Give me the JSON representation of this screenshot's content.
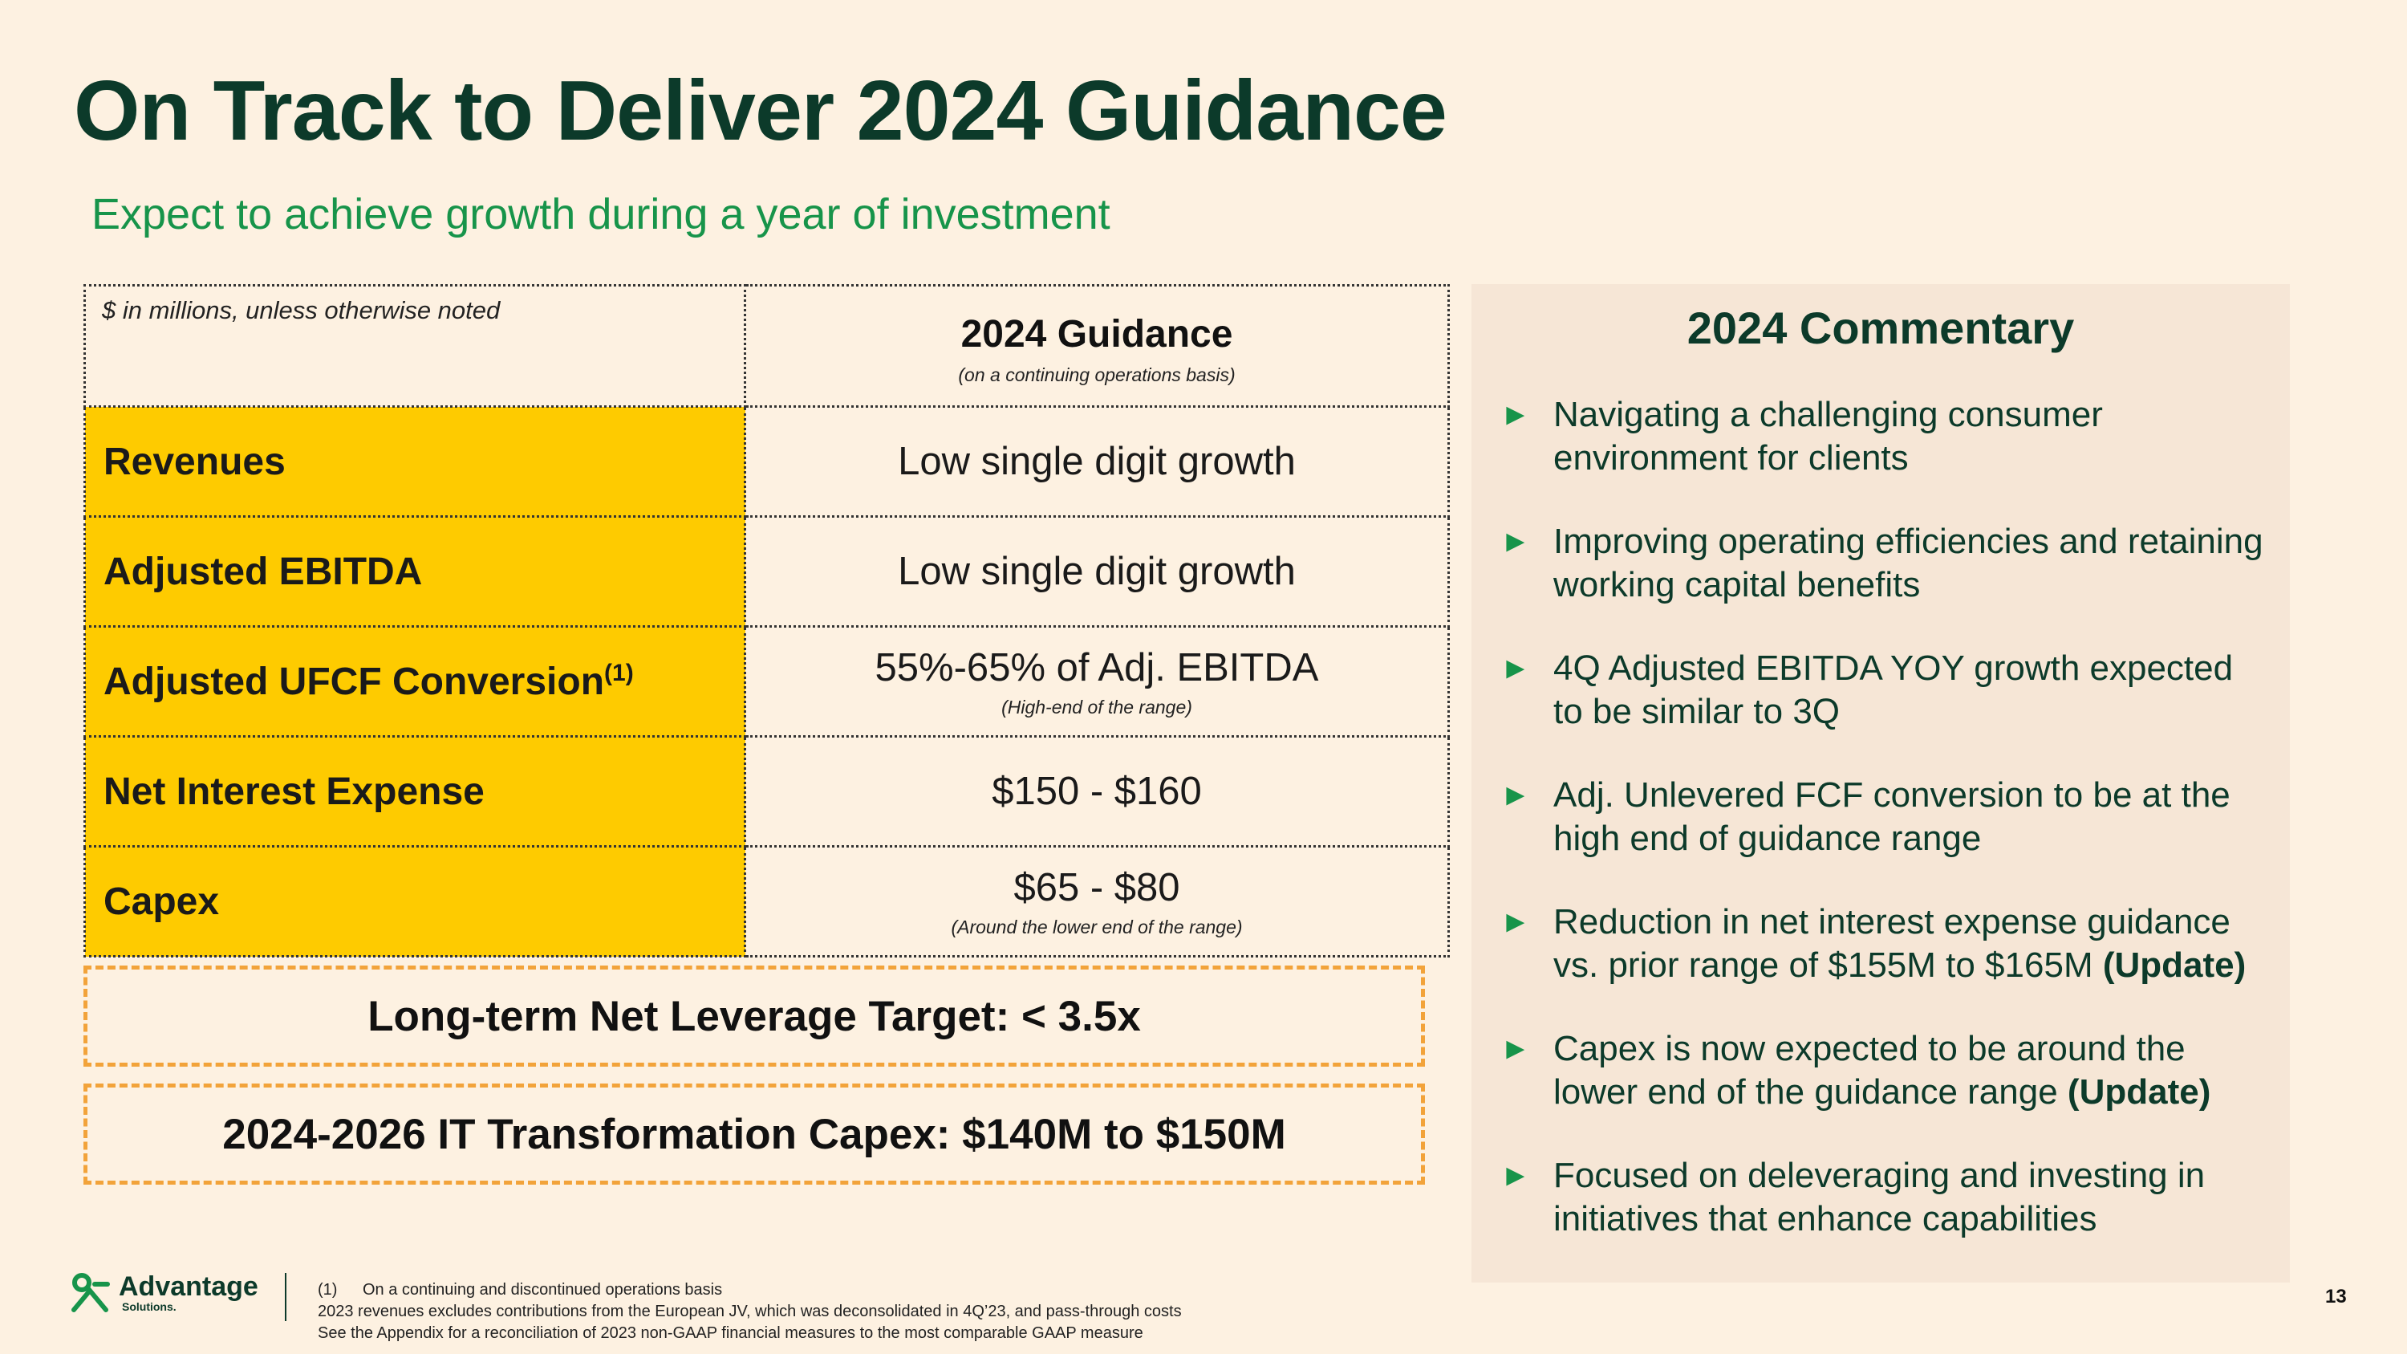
{
  "title": "On Track to Deliver 2024 Guidance",
  "subtitle": "Expect to achieve growth during a year of investment",
  "table": {
    "note": "$ in millions, unless otherwise noted",
    "header_title": "2024 Guidance",
    "header_sub": "(on a continuing operations basis)",
    "rows": [
      {
        "label": "Revenues",
        "value": "Low single digit growth",
        "sub": ""
      },
      {
        "label": "Adjusted EBITDA",
        "value": "Low single digit growth",
        "sub": ""
      },
      {
        "label": "Adjusted UFCF Conversion",
        "label_sup": "(1)",
        "value": "55%-65% of Adj. EBITDA",
        "sub": "(High-end of the range)"
      },
      {
        "label": "Net Interest Expense",
        "value": "$150 - $160",
        "sub": ""
      },
      {
        "label": "Capex",
        "value": "$65 - $80",
        "sub": "(Around the lower end of the range)"
      }
    ]
  },
  "targets": {
    "leverage": "Long-term Net Leverage Target: < 3.5x",
    "it_capex": "2024-2026 IT Transformation Capex: $140M to $150M"
  },
  "commentary": {
    "title": "2024 Commentary",
    "bullet_glyph": "►",
    "items": [
      {
        "text": "Navigating a challenging consumer environment for clients",
        "tag": ""
      },
      {
        "text": "Improving operating efficiencies and retaining working capital benefits",
        "tag": ""
      },
      {
        "text": "4Q Adjusted EBITDA YOY growth expected to be similar to 3Q",
        "tag": ""
      },
      {
        "text": "Adj. Unlevered FCF conversion to be at the high end of guidance range",
        "tag": ""
      },
      {
        "text": "Reduction in net interest expense guidance vs. prior range of $155M to $165M",
        "tag": "(Update)"
      },
      {
        "text": "Capex is now expected to be around the lower end of the guidance range",
        "tag": "(Update)"
      },
      {
        "text": "Focused on deleveraging and investing in initiatives that enhance capabilities",
        "tag": ""
      }
    ]
  },
  "footer": {
    "logo_name": "Advantage",
    "logo_sub": "Solutions.",
    "fn1_marker": "(1)",
    "fn1_text": "On a continuing and discontinued operations basis",
    "fn2": "2023 revenues excludes contributions from the European JV, which was deconsolidated in 4Q’23, and pass-through costs",
    "fn3": "See the Appendix for a reconciliation of 2023 non-GAAP financial measures to the most comparable GAAP measure",
    "page_number": "13"
  },
  "colors": {
    "background": "#FDF1E1",
    "title": "#0C3A2A",
    "accent_green": "#17944A",
    "label_yellow": "#FECB00",
    "dash_orange": "#F2A33A",
    "panel": "#F6E6D6"
  }
}
